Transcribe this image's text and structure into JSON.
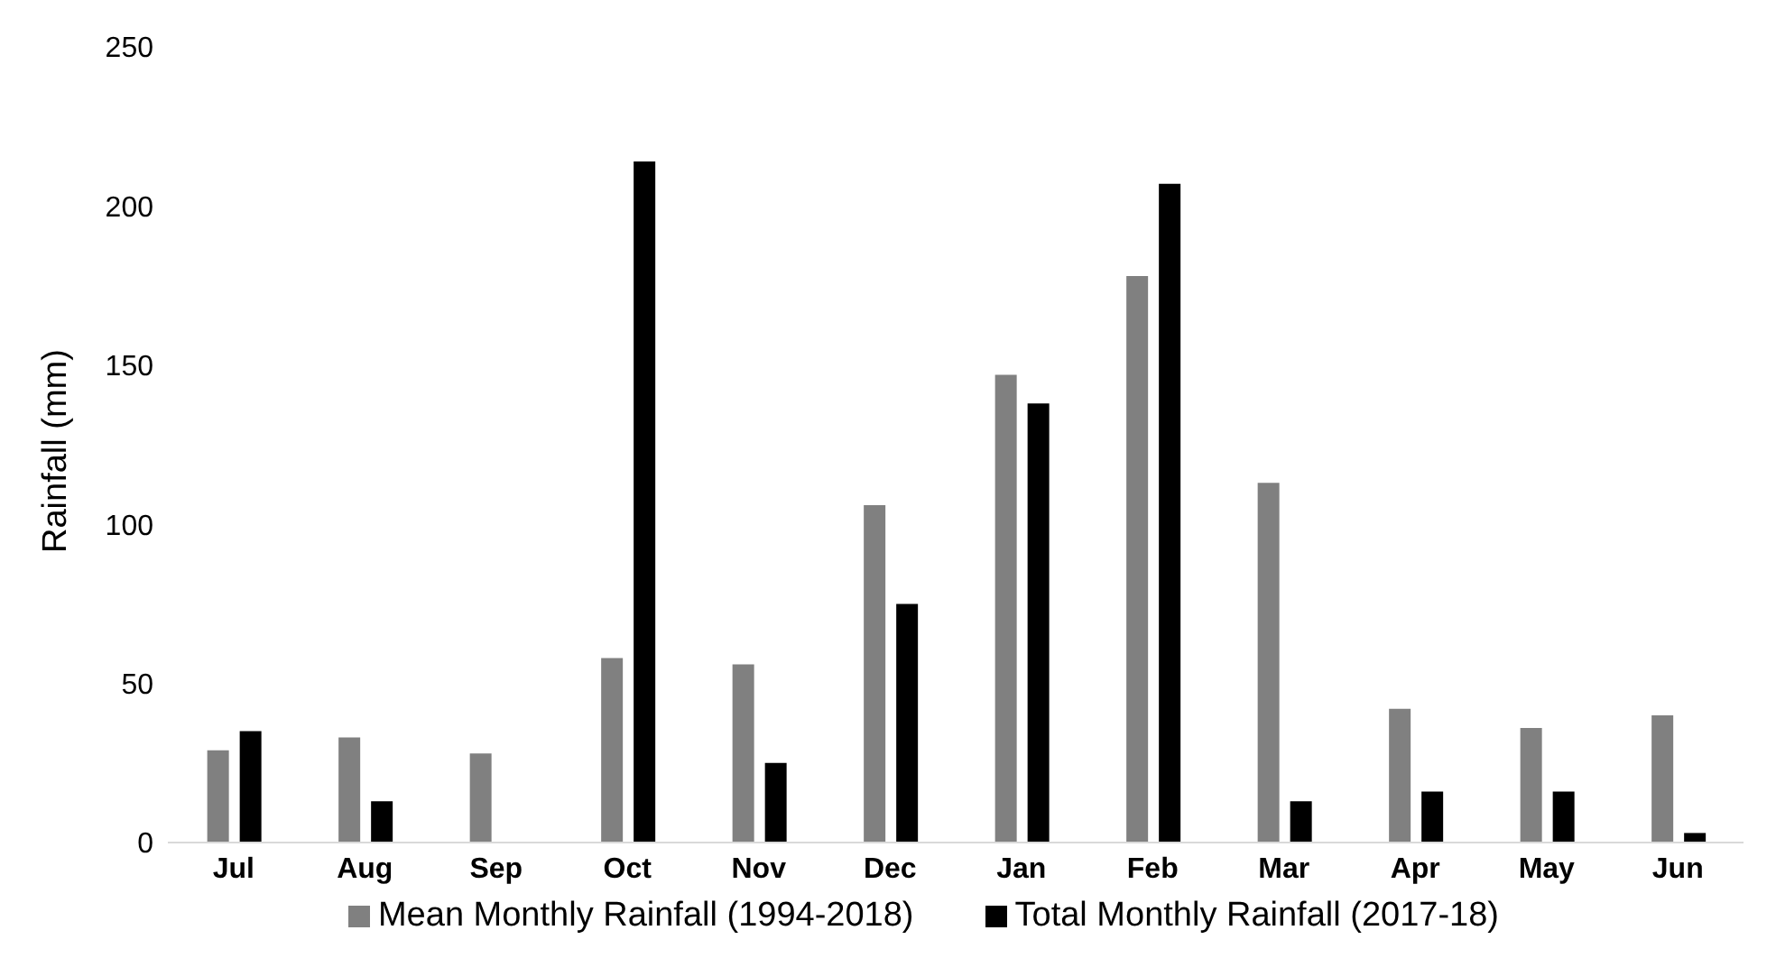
{
  "chart_data": {
    "type": "bar",
    "ylabel": "Rainfall (mm)",
    "categories": [
      "Jul",
      "Aug",
      "Sep",
      "Oct",
      "Nov",
      "Dec",
      "Jan",
      "Feb",
      "Mar",
      "Apr",
      "May",
      "Jun"
    ],
    "series": [
      {
        "name": "Mean Monthly Rainfall (1994-2018)",
        "color": "#808080",
        "values": [
          29,
          33,
          28,
          58,
          56,
          106,
          147,
          178,
          113,
          42,
          36,
          40
        ]
      },
      {
        "name": "Total Monthly Rainfall (2017-18)",
        "color": "#000000",
        "values": [
          35,
          13,
          0,
          214,
          25,
          75,
          138,
          207,
          13,
          16,
          16,
          3
        ]
      }
    ],
    "ylim": [
      0,
      250
    ],
    "yticks": [
      0,
      50,
      100,
      150,
      200,
      250
    ],
    "grid": false,
    "legend": "bottom"
  }
}
